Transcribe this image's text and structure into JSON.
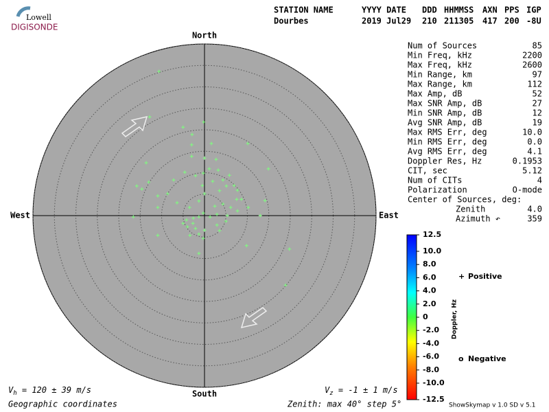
{
  "logo": {
    "top": "Lowell",
    "bottom": "DIGISONDE"
  },
  "header": {
    "row1": [
      "STATION NAME",
      "YYYY DATE",
      "DDD",
      "HHMMSS",
      "AXN",
      "PPS",
      "IGP"
    ],
    "row2": [
      "Dourbes",
      "2019 Jul29",
      "210",
      "211305",
      "417",
      "200",
      "-8U"
    ]
  },
  "stats": {
    "rows": [
      [
        "Num of Sources",
        "85"
      ],
      [
        "Min Freq, kHz",
        "2200"
      ],
      [
        "Max Freq, kHz",
        "2600"
      ],
      [
        "Min Range, km",
        "97"
      ],
      [
        "Max Range, km",
        "112"
      ],
      [
        "Max Amp, dB",
        "52"
      ],
      [
        "Max SNR Amp, dB",
        "27"
      ],
      [
        "Min SNR Amp, dB",
        "12"
      ],
      [
        "Avg SNR Amp, dB",
        "19"
      ],
      [
        "Max RMS Err, deg",
        "10.0"
      ],
      [
        "Min RMS Err, deg",
        "0.0"
      ],
      [
        "Avg RMS Err, deg",
        "4.1"
      ],
      [
        "Doppler Res, Hz",
        "0.1953"
      ],
      [
        "CIT, sec",
        "5.12"
      ],
      [
        "Num of CITs",
        "4"
      ],
      [
        "Polarization",
        "O-mode"
      ]
    ],
    "center": {
      "title": "Center of Sources, deg:",
      "rows": [
        [
          "Zenith",
          "4.0"
        ],
        [
          "Azimuth ↶",
          "359"
        ]
      ]
    }
  },
  "footer": {
    "vh": {
      "symbol": "V",
      "sub": "h",
      "text": " = 120 ± 39 m/s"
    },
    "vz": {
      "symbol": "V",
      "sub": "z",
      "text": " = -1 ± 1 m/s"
    },
    "coords": "Geographic coordinates",
    "zenith": "Zenith: max 40°  step 5°",
    "version": "ShowSkymap v 1.0  SD v 5.1"
  },
  "chart_data": {
    "type": "scatter",
    "directions": {
      "north": "North",
      "south": "South",
      "east": "East",
      "west": "West"
    },
    "rlim": [
      0,
      40
    ],
    "rticks": [
      5,
      10,
      15,
      20,
      25,
      30,
      35,
      40
    ],
    "color": "#7dff7d",
    "x": [
      -10.6,
      -12.8,
      -5.0,
      -0.2,
      -2.9,
      -3.0,
      1.6,
      -13.6,
      -3.0,
      0.0,
      2.7,
      10.1,
      14.9,
      -7.2,
      -4.6,
      -2.1,
      -0.3,
      1.1,
      3.2,
      5.8,
      -13.0,
      -15.8,
      -14.6,
      -0.5,
      0.0,
      1.9,
      4.3,
      5.1,
      6.9,
      7.7,
      3.5,
      7.5,
      8.6,
      -8.6,
      -10.9,
      -10.9,
      -6.4,
      -3.5,
      -1.3,
      2.4,
      4.3,
      6.1,
      7.7,
      10.2,
      14.1,
      -16.6,
      -4.2,
      -2.6,
      -1.3,
      -0.3,
      1.3,
      2.9,
      5.3,
      13.0,
      -4.0,
      -2.1,
      0.0,
      2.9,
      5.0,
      -10.9,
      -1.3,
      -0.3,
      3.5,
      9.8,
      19.8,
      -1.3,
      18.9,
      -5.0,
      -2.7,
      -3.4
    ],
    "y": [
      33.6,
      23.0,
      20.6,
      21.8,
      18.9,
      16.5,
      16.8,
      12.3,
      13.8,
      13.4,
      13.1,
      16.8,
      10.9,
      8.3,
      10.1,
      9.3,
      9.9,
      10.9,
      10.6,
      9.4,
      7.8,
      6.9,
      6.2,
      7.0,
      5.1,
      8.0,
      8.3,
      6.9,
      7.0,
      5.9,
      5.8,
      3.8,
      3.8,
      5.1,
      4.6,
      1.9,
      3.0,
      1.9,
      3.4,
      2.2,
      2.7,
      1.9,
      1.1,
      1.9,
      3.5,
      -0.3,
      -1.0,
      -0.6,
      -0.3,
      0.6,
      -0.3,
      0.3,
      0.0,
      0.0,
      -2.6,
      -3.0,
      -3.4,
      -2.2,
      -1.3,
      -4.6,
      -4.3,
      -5.3,
      -3.5,
      -7.0,
      -7.8,
      -8.8,
      -16.2,
      -1.8,
      -1.8,
      -4.6
    ],
    "colorbar": {
      "label": "Doppler, Hz",
      "lim": [
        12.5,
        -12.5
      ],
      "ticks": [
        12.5,
        {
          "value": 10,
          "label": "10.0"
        },
        {
          "value": 8,
          "label": "8.0"
        },
        {
          "value": 6,
          "label": "6.0"
        },
        {
          "value": 4,
          "label": "4.0"
        },
        {
          "value": 2,
          "label": "2.0"
        },
        0,
        {
          "value": -2,
          "label": "-2.0"
        },
        {
          "value": -4,
          "label": "-4.0"
        },
        {
          "value": -6,
          "label": "-6.0"
        },
        {
          "value": -8,
          "label": "-8.0"
        },
        {
          "value": -10,
          "label": "-10.0"
        },
        -12.5
      ]
    },
    "legend": [
      {
        "symbol": "+",
        "name": "Positive",
        "color": "#0000cc"
      },
      {
        "symbol": "o",
        "name": "Negative",
        "color": "#dd0000"
      }
    ]
  }
}
